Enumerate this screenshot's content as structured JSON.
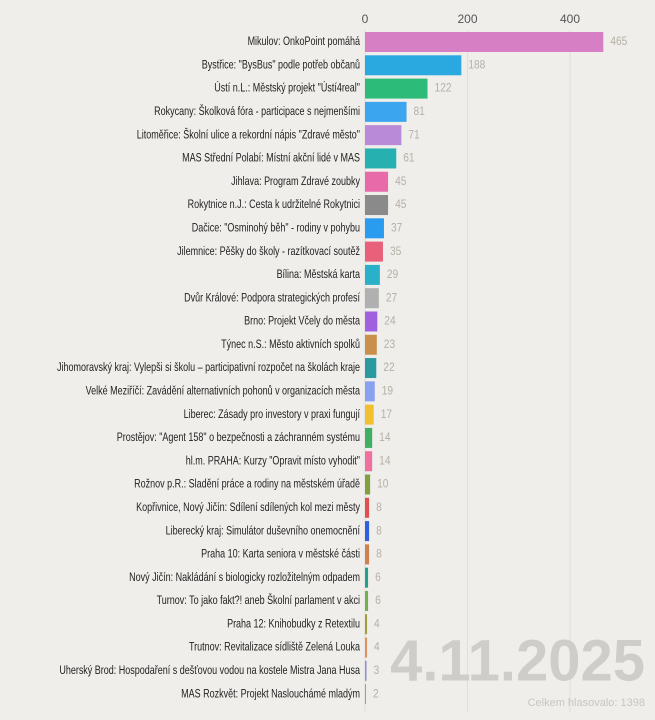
{
  "chart_data": {
    "type": "bar",
    "orientation": "horizontal",
    "categories": [
      "Mikulov: OnkoPoint pomáhá",
      "Bystřice: \"BysBus\" podle potřeb občanů",
      "Ústí n.L.: Městský projekt \"Ústí4real\"",
      "Rokycany: Školková fóra - participace s nejmenšími",
      "Litoměřice: Školní ulice a rekordní nápis \"Zdravé město\"",
      "MAS Střední Polabí: Místní akční lidé v MAS",
      "Jihlava: Program Zdravé zoubky",
      "Rokytnice n.J.: Cesta k udržitelné Rokytnici",
      "Dačice: \"Osminohý běh\" - rodiny v pohybu",
      "Jilemnice: Pěšky do školy - razítkovací soutěž",
      "Bílina: Městská karta",
      "Dvůr Králové: Podpora strategických profesí",
      "Brno: Projekt Včely do města",
      "Týnec n.S.: Město aktivních spolků",
      "Jihomoravský kraj: Vylepši si školu – participativní rozpočet na školách kraje",
      "Velké Meziříčí: Zavádění alternativních pohonů v organizacích města",
      "Liberec: Zásady pro investory v praxi fungují",
      "Prostějov: \"Agent 158\" o bezpečnosti a záchranném systému",
      "hl.m. PRAHA: Kurzy \"Opravit místo vyhodit\"",
      "Rožnov p.R.: Sladění práce a rodiny na městském úřadě",
      "Kopřivnice, Nový Jičín: Sdílení sdílených kol mezi městy",
      "Liberecký kraj: Simulátor duševního onemocnění",
      "Praha 10: Karta seniora v městské části",
      "Nový Jičín: Nakládání s biologicky rozložitelným odpadem",
      "Turnov: To jako fakt?! aneb Školní parlament v akci",
      "Praha 12: Knihobudky z Retextilu",
      "Trutnov: Revitalizace sídliště Zelená Louka",
      "Uherský Brod: Hospodaření s dešťovou vodou na kostele Mistra Jana Husa",
      "MAS Rozkvět: Projekt Naslouchámé mladým"
    ],
    "values": [
      465,
      188,
      122,
      81,
      71,
      61,
      45,
      45,
      37,
      35,
      29,
      27,
      24,
      23,
      22,
      19,
      17,
      14,
      14,
      10,
      8,
      8,
      8,
      6,
      6,
      4,
      4,
      3,
      2
    ],
    "colors": [
      "#d77fc4",
      "#2aa9e0",
      "#2dbb7a",
      "#3ba5f0",
      "#b98ad8",
      "#26b0b0",
      "#e86aa8",
      "#8a8a8a",
      "#2a9cf0",
      "#e8607a",
      "#2ab0c8",
      "#b0b0b0",
      "#a060e0",
      "#c8904a",
      "#2a9aa0",
      "#8aa0f0",
      "#f0c030",
      "#40b060",
      "#f070a0",
      "#80a040",
      "#e05050",
      "#3060e0",
      "#d08050",
      "#20a090",
      "#70b050",
      "#a0a040",
      "#e09060",
      "#9090d0",
      "#e08080"
    ],
    "xlim": [
      0,
      560
    ],
    "xticks": [
      0,
      200,
      400
    ],
    "grid": true,
    "date": "4.11.2025",
    "total": "Celkem hlasovalo: 1398"
  }
}
